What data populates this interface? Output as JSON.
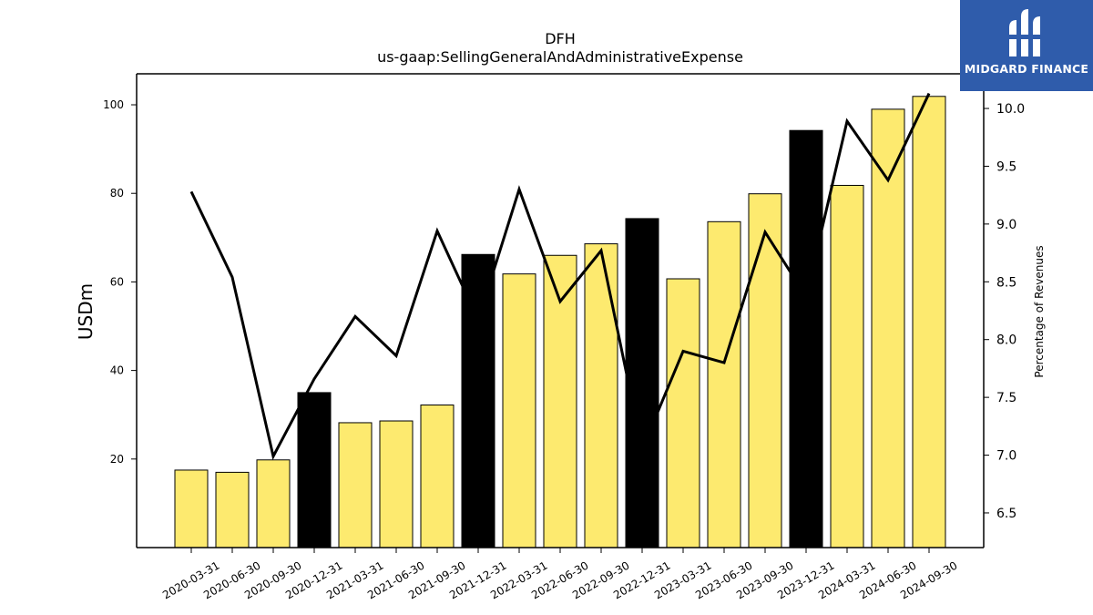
{
  "brand": {
    "name": "MIDGARD FINANCE",
    "bg_color": "#2f5cab"
  },
  "chart_data": {
    "type": "bar",
    "title": "DFH",
    "subtitle": "us-gaap:SellingGeneralAndAdministrativeExpense",
    "ylabel": "USDm",
    "y2label": "Percentage of Revenues",
    "ylim": [
      0,
      107
    ],
    "y2lim": [
      6.2,
      10.3
    ],
    "yticks": [
      20,
      40,
      60,
      80,
      100
    ],
    "y2ticks": [
      6.5,
      7.0,
      7.5,
      8.0,
      8.5,
      9.0,
      9.5,
      10.0
    ],
    "categories": [
      "2020-03-31",
      "2020-06-30",
      "2020-09-30",
      "2020-12-31",
      "2021-03-31",
      "2021-06-30",
      "2021-09-30",
      "2021-12-31",
      "2022-03-31",
      "2022-06-30",
      "2022-09-30",
      "2022-12-31",
      "2023-03-31",
      "2023-06-30",
      "2023-09-30",
      "2023-12-31",
      "2024-03-31",
      "2024-06-30",
      "2024-09-30"
    ],
    "series": [
      {
        "type": "bar",
        "values": [
          17.5,
          17.0,
          19.8,
          35.0,
          28.2,
          28.6,
          32.2,
          66.2,
          61.8,
          66.0,
          68.6,
          74.3,
          60.7,
          73.6,
          79.9,
          94.2,
          81.8,
          99.0,
          101.9
        ],
        "annual": [
          false,
          false,
          false,
          true,
          false,
          false,
          false,
          true,
          false,
          false,
          false,
          true,
          false,
          false,
          false,
          true,
          false,
          false,
          false
        ],
        "colors": {
          "quarterly": "#fdea6f",
          "annual": "#000000"
        }
      },
      {
        "type": "line",
        "axis": "right",
        "color": "#000000",
        "values": [
          9.28,
          8.54,
          6.99,
          7.66,
          8.2,
          7.86,
          8.94,
          8.17,
          9.3,
          8.33,
          8.77,
          7.05,
          7.9,
          7.8,
          8.93,
          8.37,
          9.89,
          9.38,
          10.13
        ]
      }
    ],
    "grid": false,
    "legend": "none"
  }
}
